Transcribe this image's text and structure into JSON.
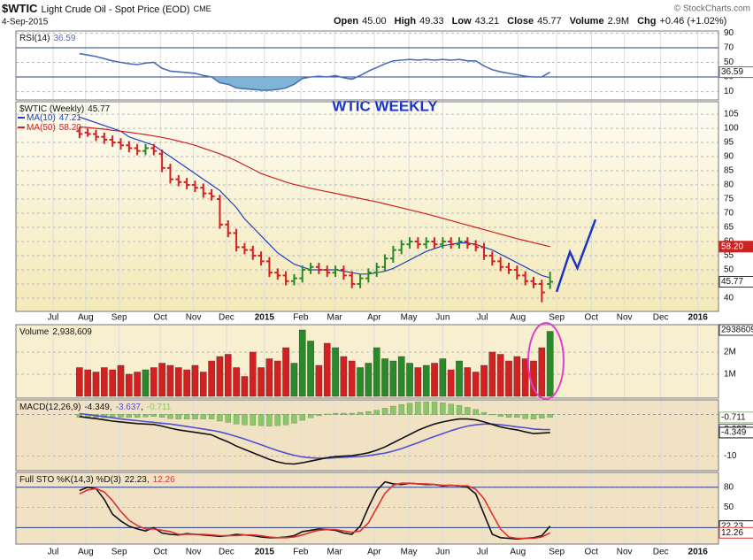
{
  "header": {
    "symbol": "$WTIC",
    "name": "Light Crude Oil - Spot Price (EOD)",
    "exchange": "CME",
    "date": "4-Sep-2015",
    "source": "© StockCharts.com",
    "quote": [
      {
        "label": "Open",
        "value": "45.00"
      },
      {
        "label": "High",
        "value": "49.33"
      },
      {
        "label": "Low",
        "value": "43.21"
      },
      {
        "label": "Close",
        "value": "45.77"
      },
      {
        "label": "Volume",
        "value": "2.9M"
      },
      {
        "label": "Chg",
        "value": "+0.46 (+1.02%)"
      }
    ]
  },
  "chart_data": [
    {
      "type": "line",
      "title": "RSI(14)",
      "ylim": [
        -1.4,
        92.9
      ],
      "yticks": [
        10,
        30,
        50,
        70,
        90
      ],
      "reference_lines": [
        30,
        70
      ],
      "fill_below": 30,
      "fill_color": "#7db5d6",
      "series": [
        {
          "color": "#4a6fb5",
          "values": [
            62,
            60,
            58,
            55,
            52,
            50,
            48,
            47,
            49,
            50,
            42,
            38,
            37,
            36,
            35,
            32,
            30,
            22,
            20,
            15,
            14,
            13,
            12,
            12,
            13,
            15,
            20,
            28,
            30,
            31,
            30,
            32,
            29,
            27,
            32,
            38,
            43,
            48,
            52,
            53,
            54,
            53,
            54,
            53,
            54,
            53,
            54,
            52,
            52,
            45,
            40,
            37,
            35,
            33,
            31,
            30,
            30,
            36.59
          ]
        }
      ]
    },
    {
      "type": "ohlc",
      "title": "$WTIC (Weekly)",
      "up_color": "#2a8a2a",
      "down_color": "#d42020",
      "ylim": [
        35.3,
        109.4
      ],
      "xlim": [
        -7.7,
        77.4
      ],
      "yticks": [
        40,
        45,
        50,
        55,
        60,
        65,
        70,
        75,
        80,
        85,
        90,
        95,
        100,
        105
      ],
      "xticks": [
        {
          "value": -3.2,
          "label": "Jul"
        },
        {
          "value": 0.75,
          "label": "Aug"
        },
        {
          "value": 4.8,
          "label": "Sep"
        },
        {
          "value": 9.8,
          "label": "Oct"
        },
        {
          "value": 13.8,
          "label": "Nov"
        },
        {
          "value": 17.8,
          "label": "Dec"
        },
        {
          "value": 22.4,
          "label": "2015"
        },
        {
          "value": 26.8,
          "label": "Feb"
        },
        {
          "value": 30.9,
          "label": "Mar"
        },
        {
          "value": 35.7,
          "label": "Apr"
        },
        {
          "value": 39.9,
          "label": "May"
        },
        {
          "value": 44,
          "label": "Jun"
        },
        {
          "value": 48.8,
          "label": "Jul"
        },
        {
          "value": 53.1,
          "label": "Aug"
        },
        {
          "value": 57.8,
          "label": "Sep"
        },
        {
          "value": 62,
          "label": "Oct"
        },
        {
          "value": 66,
          "label": "Nov"
        },
        {
          "value": 70.4,
          "label": "Dec"
        },
        {
          "value": 74.9,
          "label": "2016"
        }
      ],
      "open": [
        99,
        98.5,
        98,
        97,
        96,
        95,
        94,
        93,
        92,
        93,
        91,
        86,
        82,
        81,
        80,
        79,
        77,
        75,
        66,
        63,
        58,
        57,
        55,
        53,
        49,
        48,
        46,
        47,
        50,
        51,
        50,
        49,
        50,
        48,
        45,
        47,
        49,
        51,
        54,
        57,
        59,
        60,
        59,
        60,
        59,
        60,
        59,
        60,
        59,
        58,
        55,
        53,
        51,
        50,
        48,
        46,
        45,
        45
      ],
      "high": [
        100.5,
        100,
        99.5,
        98.5,
        97.5,
        96.5,
        95.5,
        94.5,
        94.5,
        94.5,
        92.5,
        87.5,
        83.5,
        82.5,
        81.5,
        80.5,
        78.5,
        76.5,
        67.5,
        64.5,
        59.5,
        58.5,
        56.5,
        54.5,
        50.5,
        49.5,
        48.5,
        51.5,
        52.5,
        52.5,
        51.5,
        51.5,
        51.5,
        49.5,
        48.5,
        50.5,
        52.5,
        55.5,
        58.5,
        60.5,
        61.5,
        61.5,
        61.5,
        61.5,
        61.5,
        61.5,
        61.5,
        61.5,
        60.5,
        59.5,
        56.5,
        54.5,
        52.5,
        51.5,
        49.5,
        47.5,
        46.5,
        49.33
      ],
      "low": [
        96.5,
        97,
        95.5,
        94.5,
        93.5,
        92.5,
        91.5,
        90.5,
        90.5,
        90.5,
        84.5,
        80.5,
        79.5,
        78.5,
        77.5,
        75.5,
        74.5,
        64.5,
        61.5,
        56.5,
        55.5,
        53.5,
        51.5,
        47.5,
        46.5,
        44.5,
        44.5,
        45.5,
        48.5,
        48.5,
        47.5,
        47.5,
        46.5,
        43.5,
        43.5,
        45.5,
        47.5,
        49.5,
        52.5,
        55.5,
        57.5,
        57.5,
        57.5,
        57.5,
        57.5,
        57.5,
        57.5,
        57.5,
        56.5,
        53.5,
        51.5,
        49.5,
        48.5,
        46.5,
        44.5,
        43.5,
        38.5,
        43.21
      ],
      "close": [
        98,
        98,
        97,
        96,
        95,
        94,
        93,
        92,
        93,
        92,
        86,
        82,
        81,
        80,
        79,
        77,
        76,
        66,
        63,
        58,
        57,
        55,
        53,
        49,
        48,
        46,
        47,
        50,
        51,
        50,
        49,
        50,
        48,
        45,
        47,
        49,
        51,
        54,
        57,
        59,
        60,
        59,
        60,
        59,
        60,
        59,
        60,
        59,
        58,
        55,
        53,
        51,
        50,
        48,
        46,
        45,
        42,
        45.77
      ],
      "series": [
        {
          "name": "MA(10)",
          "color": "#1f3fbf",
          "values": [
            104,
            103,
            102,
            101,
            100,
            99,
            97,
            96,
            95,
            94,
            92,
            90,
            88,
            86,
            84,
            82,
            80,
            78,
            75,
            72,
            68,
            65,
            62,
            59,
            56,
            54,
            52,
            51,
            50,
            50,
            50,
            50,
            49.5,
            49,
            48.5,
            48.5,
            49,
            49.5,
            50.5,
            52,
            53.5,
            55,
            56.5,
            57.5,
            58.5,
            59,
            59.5,
            59.5,
            59,
            58,
            57,
            55.5,
            54,
            52.5,
            51,
            49.5,
            48,
            47.21
          ]
        },
        {
          "name": "MA(50)",
          "color": "#cc2222",
          "values": [
            100.5,
            100.3,
            100,
            99.7,
            99.3,
            99,
            98.6,
            98.2,
            97.8,
            97.3,
            96.8,
            96.2,
            95.5,
            94.8,
            94,
            93,
            92,
            91,
            89.8,
            88.5,
            87,
            85.5,
            84,
            83,
            82,
            81,
            80.2,
            79.5,
            78.8,
            78.2,
            77.6,
            77,
            76.4,
            75.8,
            75.2,
            74.6,
            74,
            73.3,
            72.6,
            71.9,
            71.2,
            70.5,
            69.8,
            69,
            68.2,
            67.4,
            66.6,
            65.8,
            65,
            64.2,
            63.4,
            62.6,
            61.8,
            61,
            60.3,
            59.6,
            58.9,
            58.2
          ],
          "value_labels": [
            null,
            null,
            null,
            null,
            null,
            null,
            null,
            null,
            null,
            null,
            null,
            null,
            null,
            null,
            null,
            null,
            null,
            null,
            null,
            null,
            null,
            null,
            null,
            null,
            null,
            null,
            null,
            null,
            null,
            null,
            null,
            null,
            null,
            null,
            null,
            null,
            null,
            null,
            null,
            null,
            null,
            null,
            null,
            null,
            null,
            null,
            null,
            null,
            null,
            null,
            null,
            null,
            null,
            null,
            null,
            null,
            null,
            "58.20"
          ]
        }
      ],
      "annotation": "WTIC WEEKLY",
      "projection": {
        "color": "#1a34c8",
        "x": [
          57.8,
          59.4,
          60.3,
          62.5
        ],
        "values": [
          42.2,
          56.3,
          50.6,
          67.8
        ]
      }
    },
    {
      "type": "bar",
      "title": "Volume",
      "ylim": [
        -80000,
        3240000
      ],
      "yticks": [
        {
          "value": 1000000,
          "label": "1M"
        },
        {
          "value": 2000000,
          "label": "2M"
        }
      ],
      "values": [
        1300000,
        1200000,
        1100000,
        1300000,
        1200000,
        1400000,
        1000000,
        1100000,
        1200000,
        1300000,
        1500000,
        1400000,
        1300000,
        1200000,
        1400000,
        1100000,
        1600000,
        1800000,
        1900000,
        1300000,
        900000,
        2000000,
        1300000,
        1700000,
        1600000,
        2200000,
        1500000,
        3000000,
        2500000,
        1400000,
        2400000,
        2200000,
        1800000,
        1600000,
        1300000,
        1500000,
        2200000,
        1700000,
        1600000,
        1800000,
        1500000,
        1300000,
        1400000,
        1500000,
        1700000,
        1200000,
        1600000,
        1300000,
        1100000,
        1400000,
        2000000,
        1900000,
        1600000,
        1800000,
        1700000,
        1600000,
        2200000,
        2938609
      ],
      "value_labels": [
        null,
        null,
        null,
        null,
        null,
        null,
        null,
        null,
        null,
        null,
        null,
        null,
        null,
        null,
        null,
        null,
        null,
        null,
        null,
        null,
        null,
        null,
        null,
        null,
        null,
        null,
        null,
        null,
        null,
        null,
        null,
        null,
        null,
        null,
        null,
        null,
        null,
        null,
        null,
        null,
        null,
        null,
        null,
        null,
        null,
        null,
        null,
        null,
        null,
        null,
        null,
        null,
        null,
        null,
        null,
        null,
        null,
        "2,938,609"
      ]
    },
    {
      "type": "macd",
      "title": "MACD(12,26,9)",
      "separator": ",",
      "ylim": [
        -13.5,
        3.5
      ],
      "yticks": [
        -10
      ],
      "series": [
        {
          "kind": "histogram",
          "color": "#8cc56a",
          "values": [
            -0.7,
            -0.8,
            -0.7,
            -0.8,
            -0.8,
            -0.7,
            -0.7,
            -0.7,
            -0.6,
            -0.5,
            -0.7,
            -1,
            -1.1,
            -1.1,
            -1.1,
            -1.1,
            -1.1,
            -1.6,
            -1.9,
            -2.3,
            -2.5,
            -2.6,
            -2.7,
            -2.8,
            -2.7,
            -2.5,
            -2.1,
            -1.4,
            -0.8,
            -0.3,
            0.1,
            0.3,
            0.3,
            0.3,
            0.5,
            0.7,
            1,
            1.5,
            2,
            2.4,
            2.7,
            3,
            3,
            3,
            2.8,
            2.5,
            2.2,
            1.7,
            1.2,
            0.5,
            -0.1,
            -0.5,
            -0.7,
            -0.7,
            -1,
            -1.1,
            -0.9,
            -0.711
          ]
        },
        {
          "kind": "line",
          "color": "#5050d0",
          "values": [
            0.2,
            0,
            -0.3,
            -0.5,
            -0.8,
            -1.1,
            -1.3,
            -1.5,
            -1.7,
            -1.9,
            -2.1,
            -2.3,
            -2.6,
            -2.9,
            -3.2,
            -3.5,
            -3.8,
            -4.2,
            -4.7,
            -5.3,
            -5.9,
            -6.6,
            -7.3,
            -8,
            -8.7,
            -9.3,
            -9.8,
            -10.2,
            -10.4,
            -10.5,
            -10.5,
            -10.4,
            -10.3,
            -10.2,
            -10.1,
            -9.9,
            -9.6,
            -9.3,
            -8.8,
            -8.2,
            -7.5,
            -6.8,
            -6,
            -5.3,
            -4.6,
            -3.9,
            -3.3,
            -2.8,
            -2.5,
            -2.3,
            -2.3,
            -2.5,
            -2.7,
            -3,
            -3.2,
            -3.5,
            -3.6,
            -3.637
          ]
        },
        {
          "kind": "line",
          "color": "#111111",
          "values": [
            -0.5,
            -0.8,
            -1,
            -1.3,
            -1.6,
            -1.8,
            -2,
            -2.2,
            -2.3,
            -2.4,
            -2.8,
            -3.3,
            -3.7,
            -4,
            -4.3,
            -4.6,
            -4.9,
            -5.8,
            -6.6,
            -7.6,
            -8.4,
            -9.2,
            -10,
            -10.8,
            -11.4,
            -11.8,
            -11.9,
            -11.6,
            -11.2,
            -10.8,
            -10.4,
            -10.1,
            -10,
            -9.9,
            -9.6,
            -9.2,
            -8.6,
            -7.8,
            -6.8,
            -5.8,
            -4.8,
            -3.8,
            -3,
            -2.3,
            -1.8,
            -1.4,
            -1.1,
            -1.1,
            -1.3,
            -1.8,
            -2.4,
            -3,
            -3.4,
            -3.7,
            -4.2,
            -4.6,
            -4.5,
            -4.349
          ]
        }
      ],
      "legend_order": [
        2,
        1,
        0
      ]
    },
    {
      "type": "line",
      "title": "Full STO %K(14,3) %D(3)",
      "separator": ",",
      "ylim": [
        -4.5,
        102
      ],
      "yticks": [
        50,
        80
      ],
      "reference_lines": [
        20,
        80
      ],
      "series": [
        {
          "color": "#111111",
          "values": [
            75,
            80,
            78,
            62,
            40,
            30,
            22,
            18,
            15,
            20,
            12,
            10,
            9,
            11,
            10,
            9,
            8,
            7,
            8,
            10,
            9,
            8,
            6,
            5,
            5,
            6,
            8,
            14,
            16,
            18,
            17,
            16,
            12,
            10,
            22,
            50,
            75,
            88,
            85,
            84,
            86,
            85,
            84,
            84,
            82,
            83,
            82,
            80,
            70,
            40,
            10,
            5,
            4,
            3,
            4,
            5,
            8,
            22.23
          ]
        },
        {
          "color": "#e03030",
          "values": [
            70,
            76,
            78,
            73,
            60,
            44,
            31,
            23,
            18,
            18,
            16,
            14,
            10,
            10,
            10,
            10,
            9,
            8,
            8,
            8,
            9,
            9,
            8,
            6,
            5,
            5,
            6,
            9,
            13,
            16,
            17,
            17,
            15,
            13,
            15,
            27,
            49,
            71,
            83,
            86,
            86,
            85,
            85,
            84,
            83,
            83,
            82,
            82,
            77,
            63,
            40,
            18,
            6,
            4,
            4,
            4,
            6,
            12.26
          ]
        }
      ]
    }
  ]
}
